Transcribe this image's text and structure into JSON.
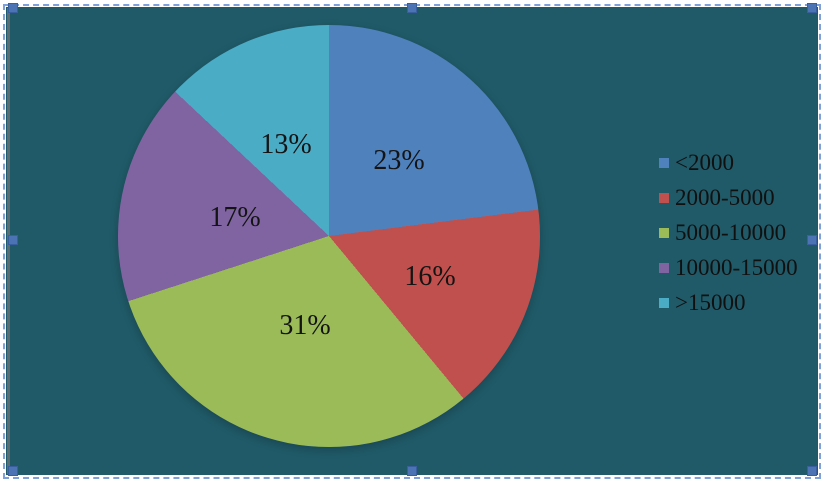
{
  "chart_data": {
    "type": "pie",
    "categories": [
      "<2000",
      "2000-5000",
      "5000-10000",
      "10000-15000",
      ">15000"
    ],
    "values": [
      23,
      16,
      31,
      17,
      13
    ],
    "data_labels": [
      "23%",
      "16%",
      "31%",
      "17%",
      "13%"
    ],
    "colors": [
      "#4F81BD",
      "#C0504D",
      "#9BBB59",
      "#8064A2",
      "#4BACC6"
    ],
    "title": "",
    "legend_position": "right",
    "start_angle_deg": 0,
    "direction": "clockwise",
    "background_color": "#205A68"
  },
  "selection_frame": {
    "state": "selected",
    "border_color": "#7EA1DB",
    "handle_color": "#4C74B4",
    "handle_positions": [
      "top-left",
      "top",
      "top-right",
      "left",
      "right",
      "bottom-left",
      "bottom",
      "bottom-right"
    ]
  }
}
